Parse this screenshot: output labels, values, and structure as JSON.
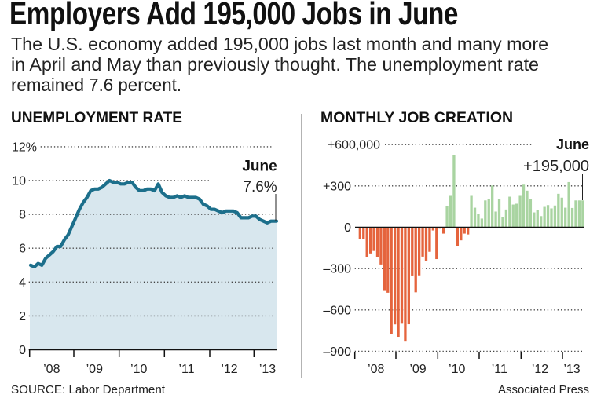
{
  "headline": "Employers Add 195,000 Jobs in June",
  "subhead": {
    "lines": [
      "The U.S. economy added 195,000 jobs last month and many more",
      "in April and May than previously thought. The unemployment rate",
      "remained 7.6 percent."
    ]
  },
  "footer": {
    "source": "SOURCE: Labor Department",
    "credit": "Associated Press"
  },
  "chart_data": [
    {
      "type": "area",
      "title": "UNEMPLOYMENT RATE",
      "xlabel": "",
      "ylabel": "",
      "ylim": [
        0,
        12
      ],
      "grid": true,
      "yticks": [
        {
          "value": 12,
          "label": "12%"
        },
        {
          "value": 10,
          "label": "10"
        },
        {
          "value": 8,
          "label": "8"
        },
        {
          "value": 6,
          "label": "6"
        },
        {
          "value": 4,
          "label": "4"
        },
        {
          "value": 2,
          "label": "2"
        },
        {
          "value": 0,
          "label": "0"
        }
      ],
      "xticks": [
        "’08",
        "’09",
        "’10",
        "’11",
        "’12",
        "’13"
      ],
      "x_range": [
        "Jan 2008",
        "Jun 2013"
      ],
      "categories": [
        "2008-01",
        "2008-02",
        "2008-03",
        "2008-04",
        "2008-05",
        "2008-06",
        "2008-07",
        "2008-08",
        "2008-09",
        "2008-10",
        "2008-11",
        "2008-12",
        "2009-01",
        "2009-02",
        "2009-03",
        "2009-04",
        "2009-05",
        "2009-06",
        "2009-07",
        "2009-08",
        "2009-09",
        "2009-10",
        "2009-11",
        "2009-12",
        "2010-01",
        "2010-02",
        "2010-03",
        "2010-04",
        "2010-05",
        "2010-06",
        "2010-07",
        "2010-08",
        "2010-09",
        "2010-10",
        "2010-11",
        "2010-12",
        "2011-01",
        "2011-02",
        "2011-03",
        "2011-04",
        "2011-05",
        "2011-06",
        "2011-07",
        "2011-08",
        "2011-09",
        "2011-10",
        "2011-11",
        "2011-12",
        "2012-01",
        "2012-02",
        "2012-03",
        "2012-04",
        "2012-05",
        "2012-06",
        "2012-07",
        "2012-08",
        "2012-09",
        "2012-10",
        "2012-11",
        "2012-12",
        "2013-01",
        "2013-02",
        "2013-03",
        "2013-04",
        "2013-05",
        "2013-06"
      ],
      "values": [
        5.0,
        4.9,
        5.1,
        5.0,
        5.4,
        5.6,
        5.8,
        6.1,
        6.1,
        6.5,
        6.8,
        7.3,
        7.8,
        8.3,
        8.7,
        9.0,
        9.4,
        9.5,
        9.5,
        9.6,
        9.8,
        10.0,
        9.9,
        9.9,
        9.8,
        9.8,
        9.9,
        9.9,
        9.6,
        9.4,
        9.4,
        9.5,
        9.5,
        9.4,
        9.8,
        9.3,
        9.1,
        9.0,
        9.0,
        9.1,
        9.0,
        9.1,
        9.0,
        9.0,
        9.0,
        8.9,
        8.6,
        8.5,
        8.3,
        8.3,
        8.2,
        8.1,
        8.2,
        8.2,
        8.2,
        8.1,
        7.8,
        7.8,
        7.8,
        7.9,
        7.9,
        7.7,
        7.6,
        7.5,
        7.6,
        7.6
      ],
      "annotation": {
        "label": "June",
        "value": "7.6%"
      },
      "colors": {
        "line": "#1c6f8b",
        "fill": "#d8e7ee"
      }
    },
    {
      "type": "bar",
      "title": "MONTHLY JOB CREATION",
      "xlabel": "",
      "ylabel": "",
      "ylim": [
        -900,
        600
      ],
      "grid": true,
      "yticks": [
        {
          "value": 600,
          "label": "+600,000"
        },
        {
          "value": 300,
          "label": "+300"
        },
        {
          "value": 0,
          "label": "0"
        },
        {
          "value": -300,
          "label": "–300"
        },
        {
          "value": -600,
          "label": "–600"
        },
        {
          "value": -900,
          "label": "–900"
        }
      ],
      "xticks": [
        "’08",
        "’09",
        "’10",
        "’11",
        "’12",
        "’13"
      ],
      "x_range": [
        "Jan 2008",
        "Jun 2013"
      ],
      "categories": [
        "2008-01",
        "2008-02",
        "2008-03",
        "2008-04",
        "2008-05",
        "2008-06",
        "2008-07",
        "2008-08",
        "2008-09",
        "2008-10",
        "2008-11",
        "2008-12",
        "2009-01",
        "2009-02",
        "2009-03",
        "2009-04",
        "2009-05",
        "2009-06",
        "2009-07",
        "2009-08",
        "2009-09",
        "2009-10",
        "2009-11",
        "2009-12",
        "2010-01",
        "2010-02",
        "2010-03",
        "2010-04",
        "2010-05",
        "2010-06",
        "2010-07",
        "2010-08",
        "2010-09",
        "2010-10",
        "2010-11",
        "2010-12",
        "2011-01",
        "2011-02",
        "2011-03",
        "2011-04",
        "2011-05",
        "2011-06",
        "2011-07",
        "2011-08",
        "2011-09",
        "2011-10",
        "2011-11",
        "2011-12",
        "2012-01",
        "2012-02",
        "2012-03",
        "2012-04",
        "2012-05",
        "2012-06",
        "2012-07",
        "2012-08",
        "2012-09",
        "2012-10",
        "2012-11",
        "2012-12",
        "2013-01",
        "2013-02",
        "2013-03",
        "2013-04",
        "2013-05",
        "2013-06"
      ],
      "values": [
        -8,
        -85,
        -83,
        -215,
        -190,
        -172,
        -215,
        -270,
        -462,
        -475,
        -776,
        -705,
        -795,
        -700,
        -830,
        -704,
        -350,
        -472,
        -349,
        -213,
        -242,
        -178,
        -23,
        -231,
        -10,
        -46,
        151,
        228,
        522,
        -139,
        -95,
        -46,
        -52,
        228,
        142,
        95,
        63,
        195,
        205,
        303,
        114,
        205,
        76,
        129,
        222,
        165,
        171,
        228,
        309,
        266,
        203,
        108,
        124,
        81,
        148,
        161,
        137,
        158,
        243,
        215,
        142,
        328,
        140,
        195,
        195,
        195
      ],
      "annotation": {
        "label": "June",
        "value": "+195,000"
      },
      "colors": {
        "positive": "#a9d4a1",
        "negative": "#e5643d"
      }
    }
  ]
}
